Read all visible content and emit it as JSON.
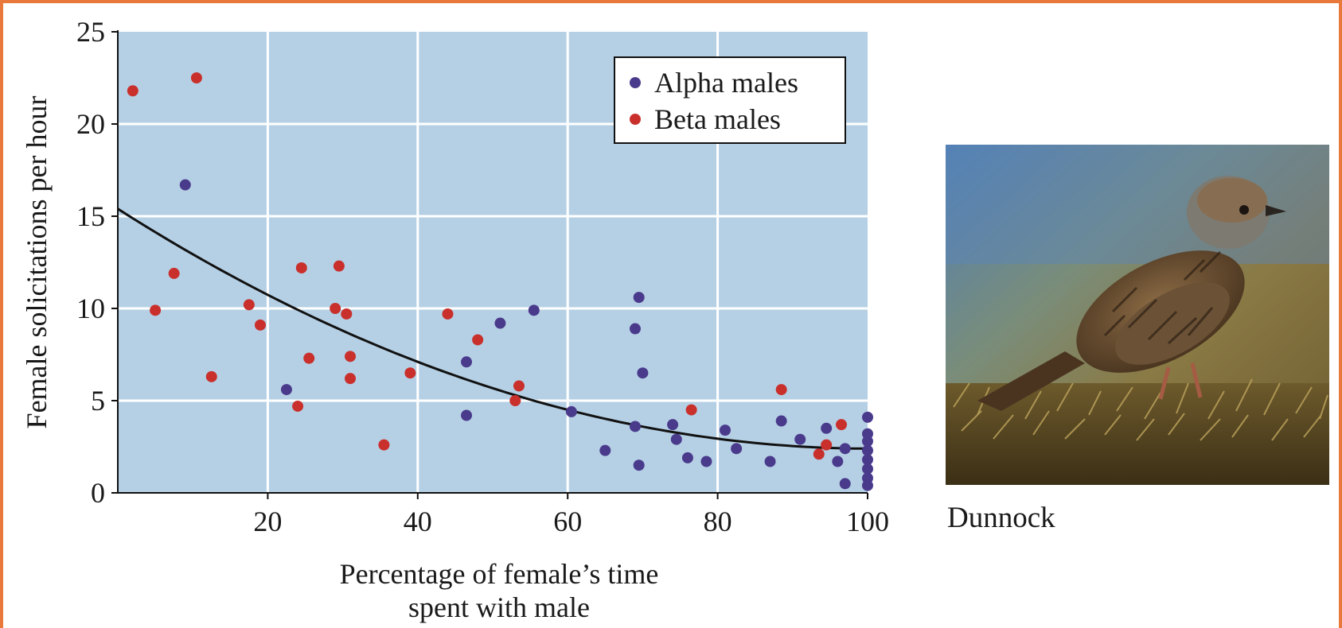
{
  "chart_data": {
    "type": "scatter",
    "xlabel": [
      "Percentage of female’s time",
      "spent with male"
    ],
    "ylabel": "Female solicitations per hour",
    "xlim": [
      0,
      100
    ],
    "ylim": [
      0,
      25
    ],
    "xticks": [
      20,
      40,
      60,
      80,
      100
    ],
    "yticks": [
      0,
      5,
      10,
      15,
      20,
      25
    ],
    "grid": true,
    "legend_position": "top-right",
    "series": [
      {
        "name": "Alpha males",
        "color": "#4a3a8c",
        "points": [
          [
            9,
            16.7
          ],
          [
            22.5,
            5.6
          ],
          [
            46.5,
            7.1
          ],
          [
            46.5,
            4.2
          ],
          [
            51,
            9.2
          ],
          [
            55.5,
            9.9
          ],
          [
            60.5,
            4.4
          ],
          [
            65,
            2.3
          ],
          [
            69,
            3.6
          ],
          [
            69,
            8.9
          ],
          [
            69.5,
            10.6
          ],
          [
            70,
            6.5
          ],
          [
            69.5,
            1.5
          ],
          [
            74,
            3.7
          ],
          [
            74.5,
            2.9
          ],
          [
            76,
            1.9
          ],
          [
            78.5,
            1.7
          ],
          [
            81,
            3.4
          ],
          [
            82.5,
            2.4
          ],
          [
            87,
            1.7
          ],
          [
            88.5,
            3.9
          ],
          [
            91,
            2.9
          ],
          [
            94.5,
            3.5
          ],
          [
            96,
            1.7
          ],
          [
            97,
            2.4
          ],
          [
            97,
            0.5
          ],
          [
            100,
            4.1
          ],
          [
            100,
            3.2
          ],
          [
            100,
            2.8
          ],
          [
            100,
            2.3
          ],
          [
            100,
            1.8
          ],
          [
            100,
            1.3
          ],
          [
            100,
            0.8
          ],
          [
            100,
            0.4
          ]
        ]
      },
      {
        "name": "Beta males",
        "color": "#c9302c",
        "points": [
          [
            2,
            21.8
          ],
          [
            10.5,
            22.5
          ],
          [
            5,
            9.9
          ],
          [
            7.5,
            11.9
          ],
          [
            12.5,
            6.3
          ],
          [
            17.5,
            10.2
          ],
          [
            19,
            9.1
          ],
          [
            24,
            4.7
          ],
          [
            24.5,
            12.2
          ],
          [
            25.5,
            7.3
          ],
          [
            29,
            10.0
          ],
          [
            29.5,
            12.3
          ],
          [
            30.5,
            9.7
          ],
          [
            31,
            6.2
          ],
          [
            31,
            7.4
          ],
          [
            35.5,
            2.6
          ],
          [
            39,
            6.5
          ],
          [
            44,
            9.7
          ],
          [
            48,
            8.3
          ],
          [
            53,
            5.0
          ],
          [
            53.5,
            5.8
          ],
          [
            76.5,
            4.5
          ],
          [
            88.5,
            5.6
          ],
          [
            93.5,
            2.1
          ],
          [
            94.5,
            2.6
          ],
          [
            96.5,
            3.7
          ]
        ]
      }
    ],
    "fit_curve": {
      "color": "#111111",
      "coefficients": [
        15.4,
        -0.259,
        0.00129
      ]
    }
  },
  "photo": {
    "caption": "Dunnock"
  }
}
